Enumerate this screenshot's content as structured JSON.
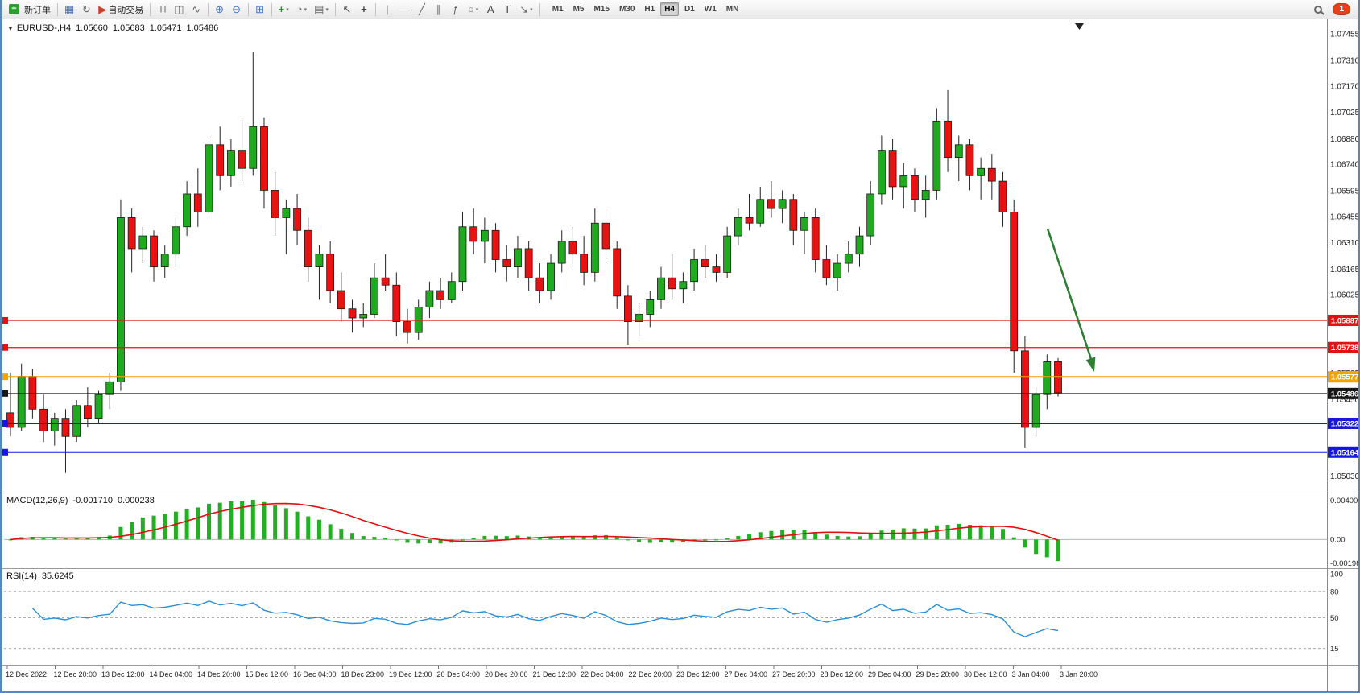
{
  "toolbar": {
    "new_order_label": "新订单",
    "auto_trading_label": "自动交易",
    "timeframes": [
      "M1",
      "M5",
      "M15",
      "M30",
      "H1",
      "H4",
      "D1",
      "W1",
      "MN"
    ],
    "active_timeframe": "H4",
    "notification_count": "1",
    "icons": {
      "new_order": "+",
      "market_watch": "▦",
      "refresh": "↻",
      "auto_trading": "▶",
      "bar_chart": "≣",
      "candle_chart": "◫",
      "line_chart": "∿",
      "zoom_in": "⊕",
      "zoom_out": "⊖",
      "tile_windows": "⊞",
      "indicators": "+",
      "periods": "◔",
      "templates": "▤",
      "cursor": "↖",
      "crosshair": "+",
      "vertical_line": "|",
      "horizontal_line": "—",
      "trendline": "╱",
      "channel": "∥",
      "fibonacci": "ƒ",
      "shapes": "○",
      "text": "A",
      "text_label": "T",
      "arrows": "↘",
      "caret": "▾"
    }
  },
  "chart": {
    "header": {
      "dropdown_glyph": "▼",
      "symbol_timeframe": "EURUSD-,H4",
      "open": "1.05660",
      "high": "1.05683",
      "low": "1.05471",
      "close": "1.05486"
    },
    "scroll_marker": "▼",
    "price_axis": [
      "1.07455",
      "1.07310",
      "1.07170",
      "1.07025",
      "1.06880",
      "1.06740",
      "1.06595",
      "1.06455",
      "1.06310",
      "1.06165",
      "1.06025",
      "1.05880",
      "1.05740",
      "1.05595",
      "1.05450",
      "1.05310",
      "1.05165",
      "1.05030"
    ],
    "levels": [
      {
        "price": 1.05887,
        "label": "1.05887",
        "color": "#e01212",
        "width": 1.2
      },
      {
        "price": 1.05738,
        "label": "1.05738",
        "color": "#e01212",
        "width": 1.2
      },
      {
        "price": 1.05577,
        "label": "1.05577",
        "color": "#f2a300",
        "width": 2
      },
      {
        "price": 1.05486,
        "label": "1.05486",
        "color": "#161616",
        "width": 1
      },
      {
        "price": 1.05322,
        "label": "1.05322",
        "color": "#1717dd",
        "width": 2
      },
      {
        "price": 1.05164,
        "label": "1.05164",
        "color": "#1717dd",
        "width": 2
      }
    ],
    "time_axis": [
      "12 Dec 2022",
      "12 Dec 20:00",
      "13 Dec 12:00",
      "14 Dec 04:00",
      "14 Dec 20:00",
      "15 Dec 12:00",
      "16 Dec 04:00",
      "18 Dec 23:00",
      "19 Dec 12:00",
      "20 Dec 04:00",
      "20 Dec 20:00",
      "21 Dec 12:00",
      "22 Dec 04:00",
      "22 Dec 20:00",
      "23 Dec 12:00",
      "27 Dec 04:00",
      "27 Dec 20:00",
      "28 Dec 12:00",
      "29 Dec 04:00",
      "29 Dec 20:00",
      "30 Dec 12:00",
      "3 Jan 04:00",
      "3 Jan 20:00"
    ],
    "colors": {
      "up": "#1faa1f",
      "down": "#e81212",
      "wick": "#222222",
      "arrow": "#2f7d32",
      "rsi_line": "#2b8fd4",
      "macd_hist": "#22b022",
      "macd_signal": "#e01010"
    }
  },
  "macd": {
    "label": "MACD(12,26,9)",
    "value_main": "-0.001710",
    "value_signal": "0.000238",
    "axis": [
      "0.004008",
      "0.00",
      "-0.001983"
    ]
  },
  "rsi": {
    "label": "RSI(14)",
    "value": "35.6245",
    "axis": [
      "100",
      "80",
      "50",
      "15"
    ],
    "levels": [
      80,
      50,
      15
    ]
  },
  "chart_data": {
    "type": "candlestick",
    "symbol": "EURUSD",
    "timeframe": "H4",
    "title": "EURUSD-,H4 1.05660 1.05683 1.05471 1.05486",
    "price_range": [
      1.0496,
      1.0752
    ],
    "horizontal_levels": [
      1.05887,
      1.05738,
      1.05577,
      1.05486,
      1.05322,
      1.05164
    ],
    "indicators": [
      {
        "type": "MACD",
        "params": [
          12,
          26,
          9
        ],
        "last_main": -0.00171,
        "last_signal": 0.000238
      },
      {
        "type": "RSI",
        "params": [
          14
        ],
        "last_value": 35.6245
      }
    ],
    "ohlc": [
      [
        1.0538,
        1.056,
        1.0525,
        1.053
      ],
      [
        1.053,
        1.0565,
        1.0528,
        1.0558
      ],
      [
        1.0558,
        1.0562,
        1.0535,
        1.054
      ],
      [
        1.054,
        1.0548,
        1.0522,
        1.0528
      ],
      [
        1.0528,
        1.0538,
        1.052,
        1.0535
      ],
      [
        1.0535,
        1.054,
        1.0505,
        1.0525
      ],
      [
        1.0525,
        1.0545,
        1.0522,
        1.0542
      ],
      [
        1.0542,
        1.0552,
        1.053,
        1.0535
      ],
      [
        1.0535,
        1.055,
        1.0532,
        1.0548
      ],
      [
        1.0548,
        1.056,
        1.054,
        1.0555
      ],
      [
        1.0555,
        1.0655,
        1.055,
        1.0645
      ],
      [
        1.0645,
        1.065,
        1.0615,
        1.0628
      ],
      [
        1.0628,
        1.064,
        1.062,
        1.0635
      ],
      [
        1.0635,
        1.0638,
        1.061,
        1.0618
      ],
      [
        1.0618,
        1.063,
        1.0612,
        1.0625
      ],
      [
        1.0625,
        1.0645,
        1.0618,
        1.064
      ],
      [
        1.064,
        1.0665,
        1.0635,
        1.0658
      ],
      [
        1.0658,
        1.0672,
        1.064,
        1.0648
      ],
      [
        1.0648,
        1.069,
        1.0645,
        1.0685
      ],
      [
        1.0685,
        1.0695,
        1.066,
        1.0668
      ],
      [
        1.0668,
        1.0688,
        1.0662,
        1.0682
      ],
      [
        1.0682,
        1.07,
        1.0665,
        1.0672
      ],
      [
        1.0672,
        1.0736,
        1.0668,
        1.0695
      ],
      [
        1.0695,
        1.07,
        1.065,
        1.066
      ],
      [
        1.066,
        1.067,
        1.0635,
        1.0645
      ],
      [
        1.0645,
        1.0655,
        1.0625,
        1.065
      ],
      [
        1.065,
        1.0658,
        1.063,
        1.0638
      ],
      [
        1.0638,
        1.0645,
        1.061,
        1.0618
      ],
      [
        1.0618,
        1.063,
        1.06,
        1.0625
      ],
      [
        1.0625,
        1.0632,
        1.0598,
        1.0605
      ],
      [
        1.0605,
        1.0615,
        1.0588,
        1.0595
      ],
      [
        1.0595,
        1.06,
        1.0582,
        1.059
      ],
      [
        1.059,
        1.0598,
        1.0585,
        1.0592
      ],
      [
        1.0592,
        1.062,
        1.059,
        1.0612
      ],
      [
        1.0612,
        1.0625,
        1.0605,
        1.0608
      ],
      [
        1.0608,
        1.0615,
        1.058,
        1.0588
      ],
      [
        1.0588,
        1.0595,
        1.0576,
        1.0582
      ],
      [
        1.0582,
        1.06,
        1.0578,
        1.0596
      ],
      [
        1.0596,
        1.061,
        1.059,
        1.0605
      ],
      [
        1.0605,
        1.0612,
        1.0595,
        1.06
      ],
      [
        1.06,
        1.0615,
        1.0598,
        1.061
      ],
      [
        1.061,
        1.0648,
        1.0605,
        1.064
      ],
      [
        1.064,
        1.065,
        1.0625,
        1.0632
      ],
      [
        1.0632,
        1.0645,
        1.062,
        1.0638
      ],
      [
        1.0638,
        1.0642,
        1.0615,
        1.0622
      ],
      [
        1.0622,
        1.063,
        1.061,
        1.0618
      ],
      [
        1.0618,
        1.0635,
        1.0612,
        1.0628
      ],
      [
        1.0628,
        1.0632,
        1.0605,
        1.0612
      ],
      [
        1.0612,
        1.062,
        1.0598,
        1.0605
      ],
      [
        1.0605,
        1.0625,
        1.06,
        1.062
      ],
      [
        1.062,
        1.0638,
        1.0615,
        1.0632
      ],
      [
        1.0632,
        1.064,
        1.0618,
        1.0625
      ],
      [
        1.0625,
        1.0635,
        1.0608,
        1.0615
      ],
      [
        1.0615,
        1.065,
        1.061,
        1.0642
      ],
      [
        1.0642,
        1.0648,
        1.062,
        1.0628
      ],
      [
        1.0628,
        1.0632,
        1.0595,
        1.0602
      ],
      [
        1.0602,
        1.0608,
        1.0575,
        1.0588
      ],
      [
        1.0588,
        1.0598,
        1.058,
        1.0592
      ],
      [
        1.0592,
        1.0605,
        1.0585,
        1.06
      ],
      [
        1.06,
        1.0618,
        1.0595,
        1.0612
      ],
      [
        1.0612,
        1.0625,
        1.06,
        1.0606
      ],
      [
        1.0606,
        1.0615,
        1.0598,
        1.061
      ],
      [
        1.061,
        1.0628,
        1.0605,
        1.0622
      ],
      [
        1.0622,
        1.063,
        1.0612,
        1.0618
      ],
      [
        1.0618,
        1.0625,
        1.061,
        1.0615
      ],
      [
        1.0615,
        1.064,
        1.0612,
        1.0635
      ],
      [
        1.0635,
        1.065,
        1.063,
        1.0645
      ],
      [
        1.0645,
        1.0658,
        1.0638,
        1.0642
      ],
      [
        1.0642,
        1.0662,
        1.064,
        1.0655
      ],
      [
        1.0655,
        1.0665,
        1.0645,
        1.065
      ],
      [
        1.065,
        1.066,
        1.0642,
        1.0655
      ],
      [
        1.0655,
        1.0658,
        1.063,
        1.0638
      ],
      [
        1.0638,
        1.0648,
        1.0625,
        1.0645
      ],
      [
        1.0645,
        1.065,
        1.0615,
        1.0622
      ],
      [
        1.0622,
        1.063,
        1.0608,
        1.0612
      ],
      [
        1.0612,
        1.0625,
        1.0605,
        1.062
      ],
      [
        1.062,
        1.0632,
        1.0615,
        1.0625
      ],
      [
        1.0625,
        1.064,
        1.0618,
        1.0635
      ],
      [
        1.0635,
        1.0665,
        1.063,
        1.0658
      ],
      [
        1.0658,
        1.069,
        1.0652,
        1.0682
      ],
      [
        1.0682,
        1.0688,
        1.0655,
        1.0662
      ],
      [
        1.0662,
        1.0675,
        1.065,
        1.0668
      ],
      [
        1.0668,
        1.0672,
        1.0648,
        1.0655
      ],
      [
        1.0655,
        1.0668,
        1.0645,
        1.066
      ],
      [
        1.066,
        1.0705,
        1.0655,
        1.0698
      ],
      [
        1.0698,
        1.0715,
        1.067,
        1.0678
      ],
      [
        1.0678,
        1.069,
        1.0665,
        1.0685
      ],
      [
        1.0685,
        1.0688,
        1.066,
        1.0668
      ],
      [
        1.0668,
        1.0678,
        1.0655,
        1.0672
      ],
      [
        1.0672,
        1.068,
        1.0655,
        1.0665
      ],
      [
        1.0665,
        1.067,
        1.064,
        1.0648
      ],
      [
        1.0648,
        1.0655,
        1.056,
        1.0572
      ],
      [
        1.0572,
        1.058,
        1.0519,
        1.053
      ],
      [
        1.053,
        1.0552,
        1.0525,
        1.0548
      ],
      [
        1.0548,
        1.057,
        1.054,
        1.0566
      ],
      [
        1.0566,
        1.0568,
        1.0547,
        1.0549
      ]
    ]
  }
}
